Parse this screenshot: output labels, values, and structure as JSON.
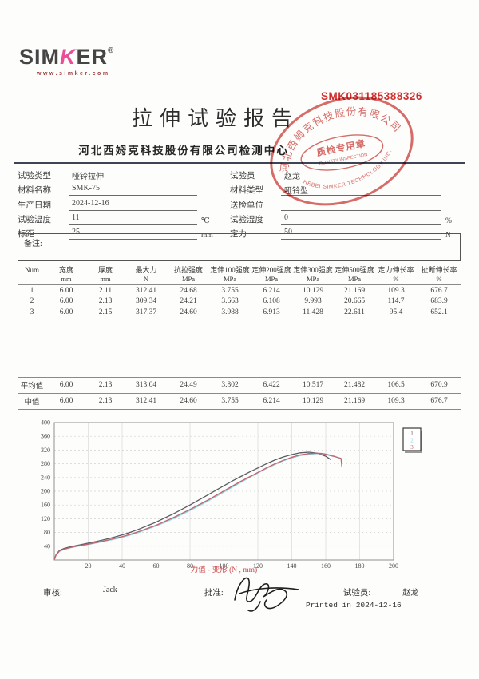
{
  "header": {
    "logo_sim": "SIM",
    "logo_k": "K",
    "logo_er": "ER",
    "logo_reg": "®",
    "logo_url": "www.simker.com",
    "serial": "SMK031185388326",
    "title": "拉伸试验报告",
    "subtitle": "河北西姆克科技股份有限公司检测中心"
  },
  "stamp": {
    "ring_top": "河北西姆克科技股份有限公司",
    "ring_bottom": "HEBEI SIMKER TECHNOLOGY INC.",
    "center_cn": "质检专用章",
    "center_en": "QUALITY INSPECTION",
    "color": "#d04b47"
  },
  "form": {
    "left": [
      {
        "label": "试验类型",
        "value": "哑铃拉伸",
        "unit": ""
      },
      {
        "label": "材料名称",
        "value": "SMK-75",
        "unit": ""
      },
      {
        "label": "生产日期",
        "value": "2024-12-16",
        "unit": ""
      },
      {
        "label": "试验温度",
        "value": "11",
        "unit": "℃"
      },
      {
        "label": "标距",
        "value": "25",
        "unit": "mm"
      }
    ],
    "right": [
      {
        "label": "试验员",
        "value": "赵龙",
        "unit": ""
      },
      {
        "label": "材料类型",
        "value": "哑铃型",
        "unit": ""
      },
      {
        "label": "送检单位",
        "value": "",
        "unit": ""
      },
      {
        "label": "试验湿度",
        "value": "0",
        "unit": "%"
      },
      {
        "label": "定力",
        "value": "50",
        "unit": "N"
      }
    ]
  },
  "remarks_label": "备注:",
  "table": {
    "headers": [
      {
        "name": "Num",
        "unit": ""
      },
      {
        "name": "宽度",
        "unit": "mm"
      },
      {
        "name": "厚度",
        "unit": "mm"
      },
      {
        "name": "最大力",
        "unit": "N"
      },
      {
        "name": "抗拉强度",
        "unit": "MPa"
      },
      {
        "name": "定伸100强度",
        "unit": "MPa"
      },
      {
        "name": "定伸200强度",
        "unit": "MPa"
      },
      {
        "name": "定伸300强度",
        "unit": "MPa"
      },
      {
        "name": "定伸500强度",
        "unit": "MPa"
      },
      {
        "name": "定力伸长率",
        "unit": "%"
      },
      {
        "name": "扯断伸长率",
        "unit": "%"
      }
    ],
    "rows": [
      [
        "1",
        "6.00",
        "2.11",
        "312.41",
        "24.68",
        "3.755",
        "6.214",
        "10.129",
        "21.169",
        "109.3",
        "676.7"
      ],
      [
        "2",
        "6.00",
        "2.13",
        "309.34",
        "24.21",
        "3.663",
        "6.108",
        "9.993",
        "20.665",
        "114.7",
        "683.9"
      ],
      [
        "3",
        "6.00",
        "2.15",
        "317.37",
        "24.60",
        "3.988",
        "6.913",
        "11.428",
        "22.611",
        "95.4",
        "652.1"
      ]
    ],
    "stats": [
      [
        "平均值",
        "6.00",
        "2.13",
        "313.04",
        "24.49",
        "3.802",
        "6.422",
        "10.517",
        "21.482",
        "106.5",
        "670.9"
      ],
      [
        "中值",
        "6.00",
        "2.13",
        "312.41",
        "24.60",
        "3.755",
        "6.214",
        "10.129",
        "21.169",
        "109.3",
        "676.7"
      ]
    ]
  },
  "chart_data": {
    "type": "line",
    "title": "",
    "xlabel": "力值 - 变形    (N , mm)",
    "ylabel": "",
    "xlim": [
      0,
      200
    ],
    "ylim": [
      0,
      400
    ],
    "x_ticks": [
      20,
      40,
      60,
      80,
      100,
      120,
      140,
      160,
      180,
      200
    ],
    "y_ticks": [
      40,
      80,
      120,
      160,
      200,
      240,
      280,
      320,
      360,
      400
    ],
    "grid": true,
    "legend_position": "top-right-outside",
    "legend": [
      "1",
      "2",
      "3"
    ],
    "series": [
      {
        "name": "1",
        "color": "#5a5b63",
        "points": [
          [
            0,
            0
          ],
          [
            1,
            15
          ],
          [
            3,
            28
          ],
          [
            6,
            34
          ],
          [
            10,
            39
          ],
          [
            15,
            44
          ],
          [
            20,
            49
          ],
          [
            25,
            54
          ],
          [
            30,
            60
          ],
          [
            35,
            66
          ],
          [
            40,
            73
          ],
          [
            45,
            81
          ],
          [
            50,
            90
          ],
          [
            55,
            100
          ],
          [
            60,
            110
          ],
          [
            65,
            122
          ],
          [
            70,
            134
          ],
          [
            75,
            147
          ],
          [
            80,
            160
          ],
          [
            85,
            174
          ],
          [
            90,
            188
          ],
          [
            95,
            202
          ],
          [
            100,
            216
          ],
          [
            105,
            230
          ],
          [
            110,
            243
          ],
          [
            115,
            256
          ],
          [
            120,
            268
          ],
          [
            125,
            280
          ],
          [
            130,
            291
          ],
          [
            135,
            300
          ],
          [
            140,
            307
          ],
          [
            145,
            312
          ],
          [
            150,
            314
          ],
          [
            155,
            311
          ],
          [
            160,
            302
          ],
          [
            163,
            292
          ]
        ]
      },
      {
        "name": "2",
        "color": "#8ed2e0",
        "points": [
          [
            0,
            0
          ],
          [
            1,
            13
          ],
          [
            3,
            25
          ],
          [
            6,
            31
          ],
          [
            10,
            36
          ],
          [
            15,
            41
          ],
          [
            20,
            45
          ],
          [
            25,
            50
          ],
          [
            30,
            55
          ],
          [
            35,
            60
          ],
          [
            40,
            66
          ],
          [
            45,
            73
          ],
          [
            50,
            81
          ],
          [
            55,
            90
          ],
          [
            60,
            99
          ],
          [
            65,
            109
          ],
          [
            70,
            120
          ],
          [
            75,
            132
          ],
          [
            80,
            144
          ],
          [
            85,
            157
          ],
          [
            90,
            170
          ],
          [
            95,
            184
          ],
          [
            100,
            198
          ],
          [
            105,
            212
          ],
          [
            110,
            226
          ],
          [
            115,
            240
          ],
          [
            120,
            253
          ],
          [
            125,
            266
          ],
          [
            130,
            278
          ],
          [
            135,
            289
          ],
          [
            140,
            297
          ],
          [
            145,
            304
          ],
          [
            150,
            308
          ],
          [
            155,
            310
          ],
          [
            160,
            309
          ],
          [
            165,
            303
          ],
          [
            168,
            296
          ]
        ]
      },
      {
        "name": "3",
        "color": "#c2656f",
        "points": [
          [
            0,
            0
          ],
          [
            1,
            14
          ],
          [
            3,
            26
          ],
          [
            6,
            32
          ],
          [
            10,
            37
          ],
          [
            15,
            42
          ],
          [
            20,
            46
          ],
          [
            25,
            51
          ],
          [
            30,
            56
          ],
          [
            35,
            62
          ],
          [
            40,
            68
          ],
          [
            45,
            75
          ],
          [
            50,
            83
          ],
          [
            55,
            92
          ],
          [
            60,
            101
          ],
          [
            65,
            112
          ],
          [
            70,
            123
          ],
          [
            75,
            135
          ],
          [
            80,
            147
          ],
          [
            85,
            160
          ],
          [
            90,
            173
          ],
          [
            95,
            187
          ],
          [
            100,
            201
          ],
          [
            105,
            215
          ],
          [
            110,
            229
          ],
          [
            115,
            242
          ],
          [
            120,
            255
          ],
          [
            125,
            268
          ],
          [
            130,
            280
          ],
          [
            135,
            290
          ],
          [
            140,
            299
          ],
          [
            145,
            306
          ],
          [
            150,
            310
          ],
          [
            155,
            311
          ],
          [
            158,
            310
          ],
          [
            166,
            300
          ],
          [
            169,
            296
          ],
          [
            169.5,
            272
          ]
        ]
      }
    ]
  },
  "footer": {
    "review_label": "审核:",
    "review_value": "Jack",
    "approve_label": "批准:",
    "tester_label": "试验员:",
    "tester_value": "赵龙",
    "printed": "Printed in 2024-12-16"
  }
}
